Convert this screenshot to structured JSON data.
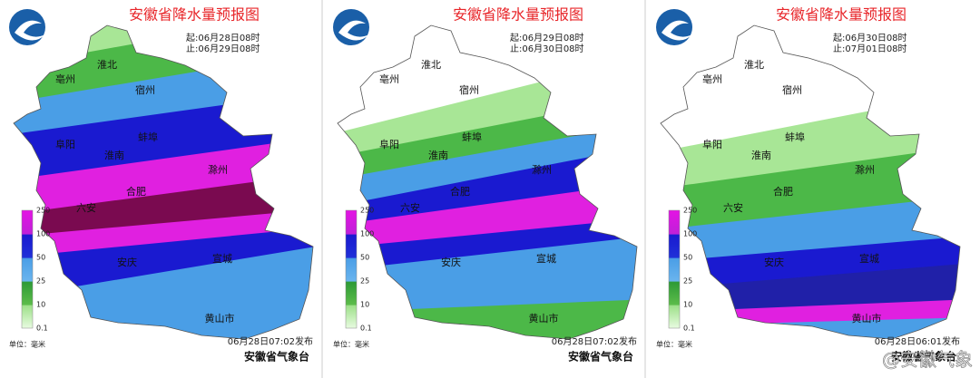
{
  "panels": [
    {
      "title": "安徽省降水量预报图",
      "start": "起:06月28日08时",
      "end": "止:06月29日08时",
      "legend": {
        "ticks": [
          250,
          100,
          50,
          25,
          10,
          0.1
        ],
        "unit": "单位：毫米"
      },
      "issued": "06月28日07:02发布",
      "agency": "安徽省气象台",
      "cities": [
        "淮北",
        "亳州",
        "宿州",
        "阜阳",
        "淮南",
        "蚌埠",
        "合肥",
        "六安",
        "滁州",
        "安庆",
        "宣城",
        "黄山市"
      ]
    },
    {
      "title": "安徽省降水量预报图",
      "start": "起:06月29日08时",
      "end": "止:06月30日08时",
      "legend": {
        "ticks": [
          250,
          100,
          50,
          25,
          10,
          0.1
        ],
        "unit": "单位：毫米"
      },
      "issued": "06月28日07:02发布",
      "agency": "安徽省气象台",
      "cities": [
        "淮北",
        "亳州",
        "宿州",
        "阜阳",
        "淮南",
        "蚌埠",
        "合肥",
        "六安",
        "滁州",
        "安庆",
        "宣城",
        "黄山市"
      ]
    },
    {
      "title": "安徽省降水量预报图",
      "start": "起:06月30日08时",
      "end": "止:07月01日08时",
      "legend": {
        "ticks": [
          250,
          100,
          50,
          25,
          10,
          0.1
        ],
        "unit": "单位：毫米"
      },
      "issued": "06月28日06:01发布",
      "agency": "安徽省气象台",
      "cities": [
        "淮北",
        "亳州",
        "宿州",
        "阜阳",
        "淮南",
        "蚌埠",
        "合肥",
        "六安",
        "滁州",
        "安庆",
        "宣城",
        "黄山市"
      ]
    }
  ],
  "watermark": "@安徽气象"
}
